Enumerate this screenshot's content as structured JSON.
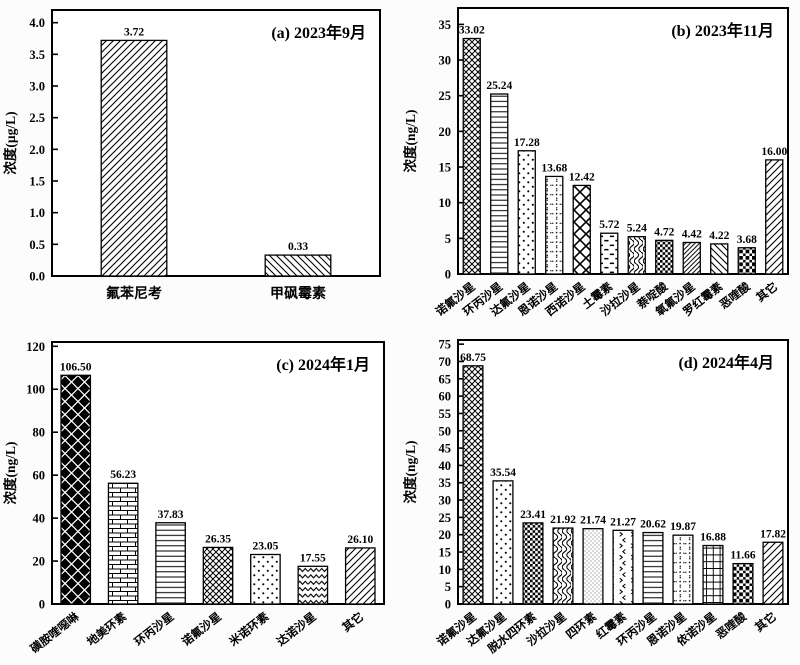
{
  "figure": {
    "ink": "#000000",
    "background": "#fcfcfc",
    "panel_background": "#ffffff"
  },
  "chart_data": [
    {
      "id": "a",
      "type": "bar",
      "title": "(a) 2023年9月",
      "ylabel": "浓度(µg/L)",
      "ylim": [
        0,
        4.2
      ],
      "tick_step": 0.5,
      "tick_max": 4.0,
      "tick_decimals": 1,
      "value_decimals": 2,
      "rotated_labels": false,
      "grid": false,
      "legend": "none",
      "categories": [
        "氟苯尼考",
        "甲砜霉素"
      ],
      "values": [
        3.72,
        0.33
      ],
      "patterns": [
        "diag",
        "bdiag"
      ]
    },
    {
      "id": "b",
      "type": "bar",
      "title": "(b) 2023年11月",
      "ylabel": "浓度(ng/L)",
      "ylim": [
        0,
        37.3
      ],
      "tick_step": 5,
      "tick_max": 35,
      "tick_decimals": 0,
      "value_decimals": 2,
      "rotated_labels": true,
      "grid": false,
      "legend": "none",
      "categories": [
        "诺氟沙星",
        "环丙沙星",
        "达氟沙星",
        "恩诺沙星",
        "西诺沙星",
        "土霉素",
        "沙拉沙星",
        "萘啶酸",
        "氧氟沙星",
        "罗红霉素",
        "恶喹酸",
        "其它"
      ],
      "values": [
        33.02,
        25.24,
        17.28,
        13.68,
        12.42,
        5.72,
        5.24,
        4.72,
        4.42,
        4.22,
        3.68,
        16.0
      ],
      "patterns": [
        "cross",
        "hline",
        "dots",
        "dotgrid",
        "lattice",
        "dash",
        "scale",
        "checker",
        "diagdense",
        "bdiag",
        "blacksq",
        "diag"
      ]
    },
    {
      "id": "c",
      "type": "bar",
      "title": "(c) 2024年1月",
      "ylabel": "浓度(ng/L)",
      "ylim": [
        0,
        122
      ],
      "tick_step": 20,
      "tick_max": 120,
      "tick_decimals": 0,
      "value_decimals": 2,
      "rotated_labels": true,
      "grid": false,
      "legend": "none",
      "categories": [
        "磺胺喹噁啉",
        "地美环素",
        "环丙沙星",
        "诺氟沙星",
        "米诺环素",
        "达诺沙星",
        "其它"
      ],
      "values": [
        106.5,
        56.23,
        37.83,
        26.35,
        23.05,
        17.55,
        26.1
      ],
      "patterns": [
        "bigdiamond",
        "brick",
        "hline",
        "cross",
        "dots",
        "zigzag",
        "diag"
      ]
    },
    {
      "id": "d",
      "type": "bar",
      "title": "(d) 2024年4月",
      "ylabel": "浓度(ng/L)",
      "ylim": [
        0,
        76.2
      ],
      "tick_step": 5,
      "tick_max": 75,
      "tick_decimals": 0,
      "value_decimals": 2,
      "rotated_labels": true,
      "grid": false,
      "legend": "none",
      "categories": [
        "诺氟沙星",
        "达氟沙星",
        "脱水四环素",
        "沙拉沙星",
        "四环素",
        "红霉素",
        "环丙沙星",
        "恩诺沙星",
        "依诺沙星",
        "恶喹酸",
        "其它"
      ],
      "values": [
        68.75,
        35.54,
        23.41,
        21.92,
        21.74,
        21.27,
        20.62,
        19.87,
        16.88,
        11.66,
        17.82
      ],
      "patterns": [
        "cross",
        "dots",
        "checker",
        "scale",
        "stipple",
        "chevron",
        "hline",
        "dotgrid",
        "grid",
        "blacksq",
        "diag"
      ]
    }
  ]
}
